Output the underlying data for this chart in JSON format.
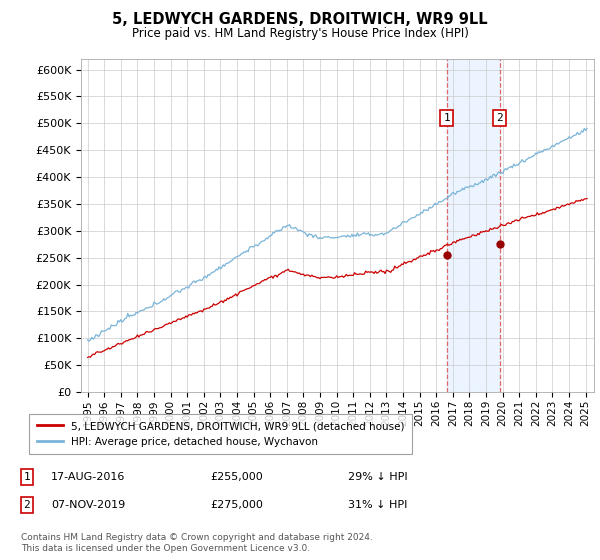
{
  "title": "5, LEDWYCH GARDENS, DROITWICH, WR9 9LL",
  "subtitle": "Price paid vs. HM Land Registry's House Price Index (HPI)",
  "ylim": [
    0,
    620000
  ],
  "yticks": [
    0,
    50000,
    100000,
    150000,
    200000,
    250000,
    300000,
    350000,
    400000,
    450000,
    500000,
    550000,
    600000
  ],
  "ytick_labels": [
    "£0",
    "£50K",
    "£100K",
    "£150K",
    "£200K",
    "£250K",
    "£300K",
    "£350K",
    "£400K",
    "£450K",
    "£500K",
    "£550K",
    "£600K"
  ],
  "hpi_color": "#7ab4d8",
  "price_color": "#cc0000",
  "sale1_date": "17-AUG-2016",
  "sale1_price": "£255,000",
  "sale1_hpi": "29% ↓ HPI",
  "sale1_year": 2016.625,
  "sale1_value": 255000,
  "sale2_date": "07-NOV-2019",
  "sale2_price": "£275,000",
  "sale2_hpi": "31% ↓ HPI",
  "sale2_year": 2019.833,
  "sale2_value": 275000,
  "legend1": "5, LEDWYCH GARDENS, DROITWICH, WR9 9LL (detached house)",
  "legend2": "HPI: Average price, detached house, Wychavon",
  "footnote": "Contains HM Land Registry data © Crown copyright and database right 2024.\nThis data is licensed under the Open Government Licence v3.0.",
  "background_color": "#ffffff",
  "grid_color": "#cccccc",
  "shade_color": "#ddeeff"
}
